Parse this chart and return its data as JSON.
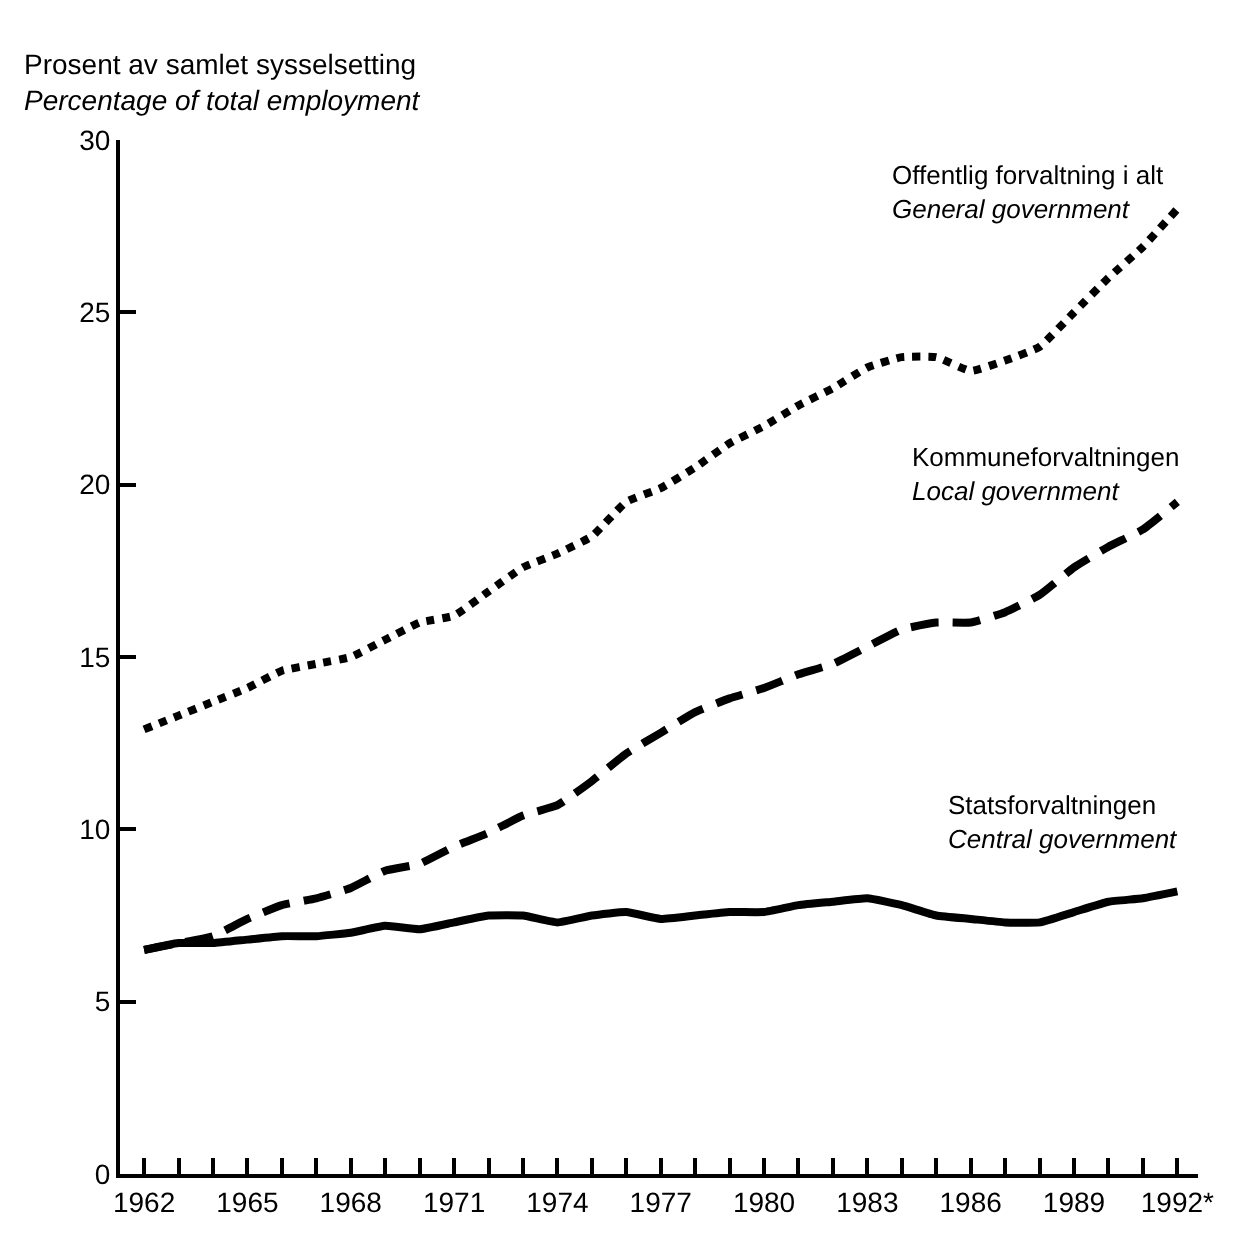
{
  "chart_data": {
    "type": "line",
    "ylabel": "Prosent av samlet sysselsetting\nPercentage of total employment",
    "x": [
      1962,
      1963,
      1964,
      1965,
      1966,
      1967,
      1968,
      1969,
      1970,
      1971,
      1972,
      1973,
      1974,
      1975,
      1976,
      1977,
      1978,
      1979,
      1980,
      1981,
      1982,
      1983,
      1984,
      1985,
      1986,
      1987,
      1988,
      1989,
      1990,
      1991,
      1992
    ],
    "series": [
      {
        "name": "Offentlig forvaltning i alt\nGeneral government",
        "color": "#000000",
        "line_style": "dotted",
        "values": [
          12.9,
          13.3,
          13.7,
          14.1,
          14.6,
          14.8,
          15.0,
          15.5,
          16.0,
          16.2,
          16.9,
          17.6,
          18.0,
          18.5,
          19.5,
          19.9,
          20.5,
          21.2,
          21.7,
          22.3,
          22.8,
          23.4,
          23.7,
          23.7,
          23.3,
          23.6,
          24.0,
          25.0,
          26.0,
          26.9,
          28.0
        ]
      },
      {
        "name": "Kommuneforvaltningen\nLocal government",
        "color": "#000000",
        "line_style": "dashed",
        "values": [
          6.5,
          6.7,
          6.9,
          7.4,
          7.8,
          8.0,
          8.3,
          8.8,
          9.0,
          9.5,
          9.9,
          10.4,
          10.7,
          11.4,
          12.2,
          12.8,
          13.4,
          13.8,
          14.1,
          14.5,
          14.8,
          15.3,
          15.8,
          16.0,
          16.0,
          16.3,
          16.8,
          17.6,
          18.2,
          18.7,
          19.5
        ]
      },
      {
        "name": "Statsforvaltningen\nCentral government",
        "color": "#000000",
        "line_style": "solid",
        "values": [
          6.5,
          6.7,
          6.7,
          6.8,
          6.9,
          6.9,
          7.0,
          7.2,
          7.1,
          7.3,
          7.5,
          7.5,
          7.3,
          7.5,
          7.6,
          7.4,
          7.5,
          7.6,
          7.6,
          7.8,
          7.9,
          8.0,
          7.8,
          7.5,
          7.4,
          7.3,
          7.3,
          7.6,
          7.9,
          8.0,
          8.2
        ]
      }
    ],
    "xlim": [
      1961.3,
      1992.6
    ],
    "xticks": [
      1962,
      {
        "value": 1963,
        "label": null
      },
      {
        "value": 1964,
        "label": null
      },
      1965,
      {
        "value": 1966,
        "label": null
      },
      {
        "value": 1967,
        "label": null
      },
      1968,
      {
        "value": 1969,
        "label": null
      },
      {
        "value": 1970,
        "label": null
      },
      1971,
      {
        "value": 1972,
        "label": null
      },
      {
        "value": 1973,
        "label": null
      },
      1974,
      {
        "value": 1975,
        "label": null
      },
      {
        "value": 1976,
        "label": null
      },
      1977,
      {
        "value": 1978,
        "label": null
      },
      {
        "value": 1979,
        "label": null
      },
      1980,
      {
        "value": 1981,
        "label": null
      },
      {
        "value": 1982,
        "label": null
      },
      1983,
      {
        "value": 1984,
        "label": null
      },
      {
        "value": 1985,
        "label": null
      },
      1986,
      {
        "value": 1987,
        "label": null
      },
      {
        "value": 1988,
        "label": null
      },
      1989,
      {
        "value": 1990,
        "label": null
      },
      {
        "value": 1991,
        "label": null
      },
      {
        "value": 1992,
        "label": "1992*"
      }
    ],
    "ylim": [
      0,
      30
    ],
    "yticks": [
      0,
      5,
      10,
      15,
      20,
      25,
      30
    ],
    "legend": false
  }
}
